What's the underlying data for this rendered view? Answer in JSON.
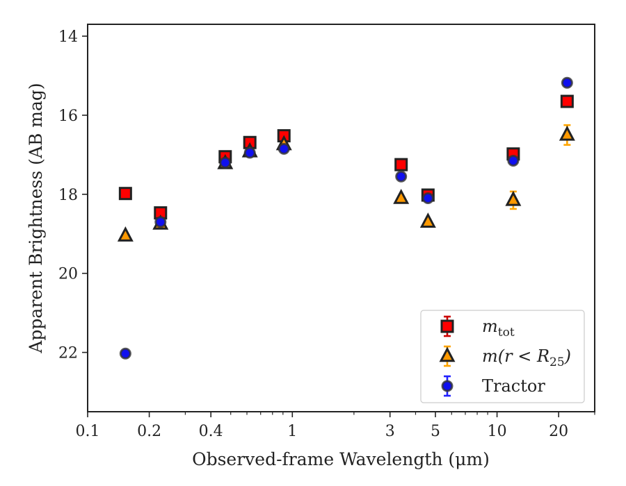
{
  "chart_data": {
    "type": "scatter",
    "title": "",
    "xlabel": "Observed-frame Wavelength (μm)",
    "ylabel": "Apparent Brightness (AB mag)",
    "xscale": "log",
    "xlim": [
      0.1,
      30
    ],
    "ylim": [
      23.5,
      13.7
    ],
    "y_inverted": true,
    "x_ticks": [
      0.1,
      0.2,
      0.4,
      1,
      3,
      5,
      10,
      20
    ],
    "x_tick_labels": [
      "0.1",
      "0.2",
      "0.4",
      "1",
      "3",
      "5",
      "10",
      "20"
    ],
    "y_ticks": [
      14,
      16,
      18,
      20,
      22
    ],
    "y_tick_labels": [
      "14",
      "16",
      "18",
      "20",
      "22"
    ],
    "grid": false,
    "legend_position": "lower-right",
    "series": [
      {
        "name": "m_tot",
        "legend_main": "m",
        "legend_sub": "tot",
        "marker": "square",
        "face_color": "#ff0000",
        "edge_color": "#222222",
        "err_color": "#cc0000",
        "points": [
          {
            "x": 0.153,
            "y": 17.98,
            "err": 0.04
          },
          {
            "x": 0.227,
            "y": 18.47,
            "err": 0.05
          },
          {
            "x": 0.47,
            "y": 17.05,
            "err": 0.03
          },
          {
            "x": 0.62,
            "y": 16.69,
            "err": 0.03
          },
          {
            "x": 0.91,
            "y": 16.52,
            "err": 0.03
          },
          {
            "x": 3.4,
            "y": 17.25,
            "err": 0.03
          },
          {
            "x": 4.6,
            "y": 18.02,
            "err": 0.04
          },
          {
            "x": 12.0,
            "y": 16.98,
            "err": 0.08
          },
          {
            "x": 22.0,
            "y": 15.65,
            "err": 0.08
          }
        ]
      },
      {
        "name": "m(r < R25)",
        "legend_main": "m(r < R",
        "legend_sub": "25",
        "legend_tail": ")",
        "marker": "triangle",
        "face_color": "#ff9900",
        "edge_color": "#222222",
        "err_color": "#ffa500",
        "points": [
          {
            "x": 0.153,
            "y": 19.05,
            "err": 0.04
          },
          {
            "x": 0.227,
            "y": 18.75,
            "err": 0.04
          },
          {
            "x": 0.47,
            "y": 17.22,
            "err": 0.03
          },
          {
            "x": 0.62,
            "y": 16.92,
            "err": 0.03
          },
          {
            "x": 0.91,
            "y": 16.74,
            "err": 0.03
          },
          {
            "x": 3.4,
            "y": 18.1,
            "err": 0.04
          },
          {
            "x": 4.6,
            "y": 18.7,
            "err": 0.05
          },
          {
            "x": 12.0,
            "y": 18.15,
            "err": 0.22
          },
          {
            "x": 22.0,
            "y": 16.5,
            "err": 0.25
          }
        ]
      },
      {
        "name": "Tractor",
        "legend_main": "Tractor",
        "marker": "circle",
        "face_color": "#1010ee",
        "edge_color": "#333333",
        "err_color": "#2222ff",
        "points": [
          {
            "x": 0.153,
            "y": 22.03,
            "err": 0.05
          },
          {
            "x": 0.227,
            "y": 18.7,
            "err": 0.04
          },
          {
            "x": 0.47,
            "y": 17.2,
            "err": 0.03
          },
          {
            "x": 0.62,
            "y": 16.95,
            "err": 0.03
          },
          {
            "x": 0.91,
            "y": 16.85,
            "err": 0.03
          },
          {
            "x": 3.4,
            "y": 17.55,
            "err": 0.03
          },
          {
            "x": 4.6,
            "y": 18.1,
            "err": 0.04
          },
          {
            "x": 12.0,
            "y": 17.15,
            "err": 0.05
          },
          {
            "x": 22.0,
            "y": 15.18,
            "err": 0.05
          }
        ]
      }
    ]
  }
}
